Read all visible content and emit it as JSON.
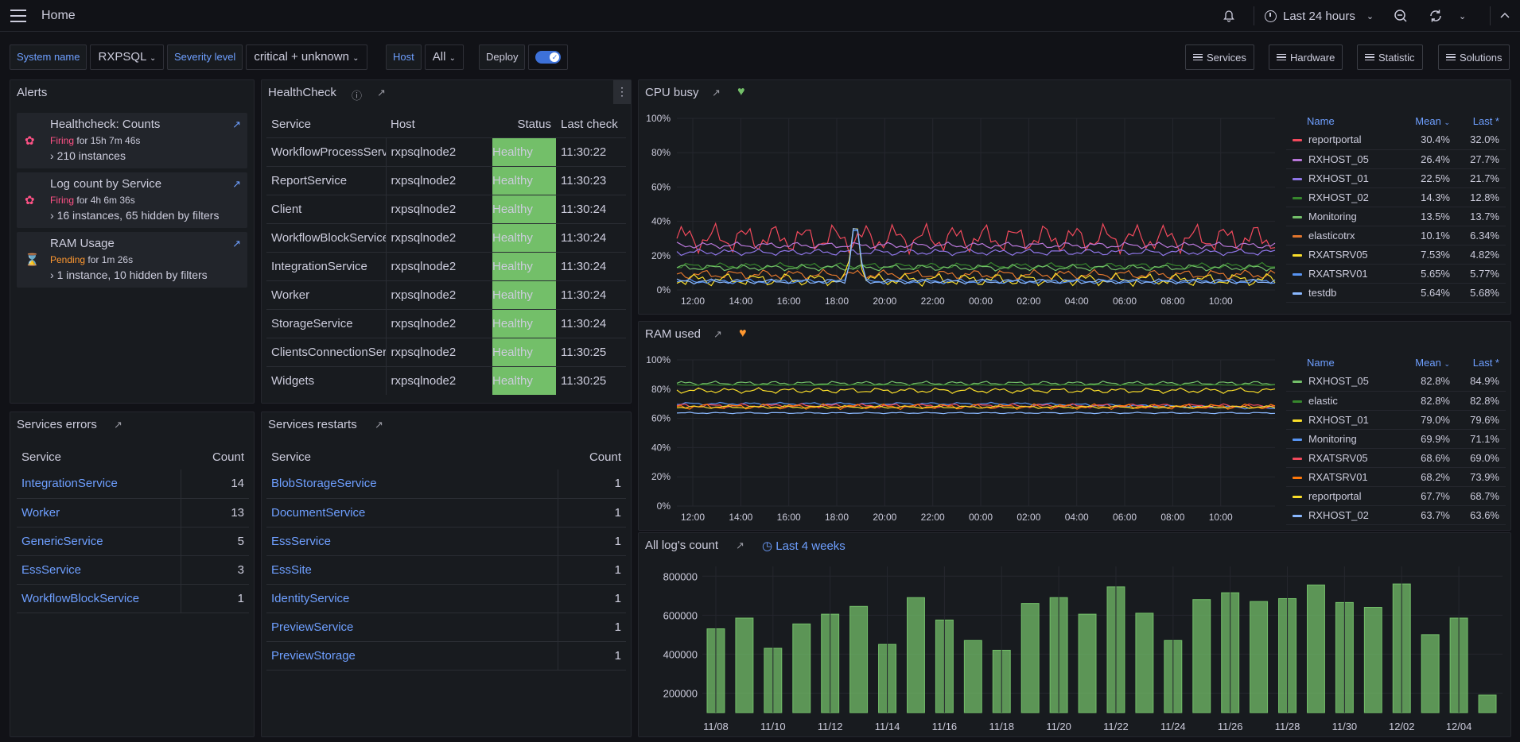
{
  "topbar": {
    "home": "Home",
    "time_range": "Last 24 hours"
  },
  "variables": {
    "system_label": "System name",
    "system_value": "RXPSQL",
    "severity_label": "Severity level",
    "severity_value": "critical + unknown",
    "host_label": "Host",
    "host_value": "All",
    "deploy_label": "Deploy",
    "deploy_on": true
  },
  "nav_buttons": [
    "Services",
    "Hardware",
    "Statistic",
    "Solutions"
  ],
  "alerts": {
    "title": "Alerts",
    "items": [
      {
        "name": "Healthcheck: Counts",
        "state": "Firing",
        "for": "for 15h 7m 46s",
        "instances": "210 instances",
        "icon": "flame-icon",
        "color": "#ff5286"
      },
      {
        "name": "Log count by Service",
        "state": "Firing",
        "for": "for 4h 6m 36s",
        "instances": "16 instances, 65 hidden by filters",
        "icon": "flame-icon",
        "color": "#ff5286"
      },
      {
        "name": "RAM Usage",
        "state": "Pending",
        "for": "for 1m 26s",
        "instances": "1 instance, 10 hidden by filters",
        "icon": "hourglass-icon",
        "color": "#ff9830"
      }
    ]
  },
  "healthcheck": {
    "title": "HealthCheck",
    "columns": [
      "Service",
      "Host",
      "Status",
      "Last check"
    ],
    "rows": [
      {
        "service": "WorkflowProcessService",
        "host": "rxpsqlnode2",
        "status": "Healthy",
        "time": "11:30:22"
      },
      {
        "service": "ReportService",
        "host": "rxpsqlnode2",
        "status": "Healthy",
        "time": "11:30:23"
      },
      {
        "service": "Client",
        "host": "rxpsqlnode2",
        "status": "Healthy",
        "time": "11:30:24"
      },
      {
        "service": "WorkflowBlockService",
        "host": "rxpsqlnode2",
        "status": "Healthy",
        "time": "11:30:24"
      },
      {
        "service": "IntegrationService",
        "host": "rxpsqlnode2",
        "status": "Healthy",
        "time": "11:30:24"
      },
      {
        "service": "Worker",
        "host": "rxpsqlnode2",
        "status": "Healthy",
        "time": "11:30:24"
      },
      {
        "service": "StorageService",
        "host": "rxpsqlnode2",
        "status": "Healthy",
        "time": "11:30:24"
      },
      {
        "service": "ClientsConnectionService",
        "host": "rxpsqlnode2",
        "status": "Healthy",
        "time": "11:30:25"
      },
      {
        "service": "Widgets",
        "host": "rxpsqlnode2",
        "status": "Healthy",
        "time": "11:30:25"
      }
    ]
  },
  "services_errors": {
    "title": "Services errors",
    "col_service": "Service",
    "col_count": "Count",
    "rows": [
      {
        "name": "IntegrationService",
        "count": "14"
      },
      {
        "name": "Worker",
        "count": "13"
      },
      {
        "name": "GenericService",
        "count": "5"
      },
      {
        "name": "EssService",
        "count": "3"
      },
      {
        "name": "WorkflowBlockService",
        "count": "1"
      }
    ]
  },
  "services_restarts": {
    "title": "Services restarts",
    "col_service": "Service",
    "col_count": "Count",
    "rows": [
      {
        "name": "BlobStorageService",
        "count": "1"
      },
      {
        "name": "DocumentService",
        "count": "1"
      },
      {
        "name": "EssService",
        "count": "1"
      },
      {
        "name": "EssSite",
        "count": "1"
      },
      {
        "name": "IdentityService",
        "count": "1"
      },
      {
        "name": "PreviewService",
        "count": "1"
      },
      {
        "name": "PreviewStorage",
        "count": "1"
      }
    ]
  },
  "legend_headers": {
    "name": "Name",
    "mean": "Mean",
    "last": "Last *"
  },
  "cpu": {
    "title": "CPU busy",
    "heart_color": "#73bf69",
    "legend": [
      {
        "name": "reportportal",
        "mean": "30.4%",
        "last": "32.0%",
        "color": "#f2495c"
      },
      {
        "name": "RXHOST_05",
        "mean": "26.4%",
        "last": "27.7%",
        "color": "#b877d9"
      },
      {
        "name": "RXHOST_01",
        "mean": "22.5%",
        "last": "21.7%",
        "color": "#8f76e8"
      },
      {
        "name": "RXHOST_02",
        "mean": "14.3%",
        "last": "12.8%",
        "color": "#37872d"
      },
      {
        "name": "Monitoring",
        "mean": "13.5%",
        "last": "13.7%",
        "color": "#73bf69"
      },
      {
        "name": "elasticotrx",
        "mean": "10.1%",
        "last": "6.34%",
        "color": "#e0752d"
      },
      {
        "name": "RXATSRV05",
        "mean": "7.53%",
        "last": "4.82%",
        "color": "#fade2a"
      },
      {
        "name": "RXATSRV01",
        "mean": "5.65%",
        "last": "5.77%",
        "color": "#5794f2"
      },
      {
        "name": "testdb",
        "mean": "5.64%",
        "last": "5.68%",
        "color": "#8ab8ff"
      }
    ]
  },
  "ram": {
    "title": "RAM used",
    "heart_color": "#ff9830",
    "legend": [
      {
        "name": "RXHOST_05",
        "mean": "82.8%",
        "last": "84.9%",
        "color": "#73bf69"
      },
      {
        "name": "elastic",
        "mean": "82.8%",
        "last": "82.8%",
        "color": "#37872d"
      },
      {
        "name": "RXHOST_01",
        "mean": "79.0%",
        "last": "79.6%",
        "color": "#fade2a"
      },
      {
        "name": "Monitoring",
        "mean": "69.9%",
        "last": "71.1%",
        "color": "#5794f2"
      },
      {
        "name": "RXATSRV05",
        "mean": "68.6%",
        "last": "69.0%",
        "color": "#f2495c"
      },
      {
        "name": "RXATSRV01",
        "mean": "68.2%",
        "last": "73.9%",
        "color": "#ff780a"
      },
      {
        "name": "reportportal",
        "mean": "67.7%",
        "last": "68.7%",
        "color": "#fade2a"
      },
      {
        "name": "RXHOST_02",
        "mean": "63.7%",
        "last": "63.6%",
        "color": "#8ab8ff"
      }
    ]
  },
  "logs": {
    "title": "All log's count",
    "range": "Last 4 weeks"
  },
  "chart_data": [
    {
      "type": "line",
      "title": "CPU busy",
      "ylim": [
        0,
        100
      ],
      "yticks": [
        "0%",
        "20%",
        "40%",
        "60%",
        "80%",
        "100%"
      ],
      "xticks": [
        "12:00",
        "14:00",
        "16:00",
        "18:00",
        "20:00",
        "22:00",
        "00:00",
        "02:00",
        "04:00",
        "06:00",
        "08:00",
        "10:00"
      ],
      "series": [
        {
          "name": "reportportal",
          "color": "#f2495c",
          "base": 30,
          "amp": 9
        },
        {
          "name": "RXHOST_05",
          "color": "#b877d9",
          "base": 26,
          "amp": 2
        },
        {
          "name": "RXHOST_01",
          "color": "#8f76e8",
          "base": 22,
          "amp": 2
        },
        {
          "name": "RXHOST_02",
          "color": "#37872d",
          "base": 14,
          "amp": 2
        },
        {
          "name": "Monitoring",
          "color": "#73bf69",
          "base": 13,
          "amp": 2
        },
        {
          "name": "elasticotrx",
          "color": "#e0752d",
          "base": 9,
          "amp": 3
        },
        {
          "name": "RXATSRV05",
          "color": "#fade2a",
          "base": 6,
          "amp": 4
        },
        {
          "name": "RXATSRV01",
          "color": "#5794f2",
          "base": 5,
          "amp": 1.5
        },
        {
          "name": "testdb",
          "color": "#8ab8ff",
          "base": 5,
          "amp": 1.5
        }
      ]
    },
    {
      "type": "line",
      "title": "RAM used",
      "ylim": [
        0,
        100
      ],
      "yticks": [
        "0%",
        "20%",
        "40%",
        "60%",
        "80%",
        "100%"
      ],
      "xticks": [
        "12:00",
        "14:00",
        "16:00",
        "18:00",
        "20:00",
        "22:00",
        "00:00",
        "02:00",
        "04:00",
        "06:00",
        "08:00",
        "10:00"
      ],
      "series": [
        {
          "name": "RXHOST_05",
          "color": "#73bf69",
          "base": 84,
          "amp": 1.5
        },
        {
          "name": "elastic",
          "color": "#37872d",
          "base": 82.8,
          "amp": 0.3
        },
        {
          "name": "RXHOST_01",
          "color": "#fade2a",
          "base": 79,
          "amp": 2
        },
        {
          "name": "Monitoring",
          "color": "#5794f2",
          "base": 70,
          "amp": 1
        },
        {
          "name": "RXATSRV05",
          "color": "#f2495c",
          "base": 68.6,
          "amp": 1.5
        },
        {
          "name": "RXATSRV01",
          "color": "#ff780a",
          "base": 68,
          "amp": 2
        },
        {
          "name": "reportportal",
          "color": "#fade2a",
          "base": 67.7,
          "amp": 1
        },
        {
          "name": "RXHOST_02",
          "color": "#8ab8ff",
          "base": 63.7,
          "amp": 0.5
        }
      ]
    },
    {
      "type": "bar",
      "title": "All log's count",
      "yticks": [
        "200000",
        "400000",
        "600000",
        "800000"
      ],
      "xticks": [
        "11/08",
        "11/10",
        "11/12",
        "11/14",
        "11/16",
        "11/18",
        "11/20",
        "11/22",
        "11/24",
        "11/26",
        "11/28",
        "11/30",
        "12/02",
        "12/04"
      ],
      "values": [
        530000,
        585000,
        430000,
        555000,
        605000,
        645000,
        450000,
        690000,
        575000,
        470000,
        420000,
        660000,
        690000,
        605000,
        745000,
        610000,
        470000,
        680000,
        715000,
        670000,
        685000,
        755000,
        665000,
        640000,
        760000,
        500000,
        585000,
        190000
      ],
      "color": "#73bf69"
    }
  ]
}
